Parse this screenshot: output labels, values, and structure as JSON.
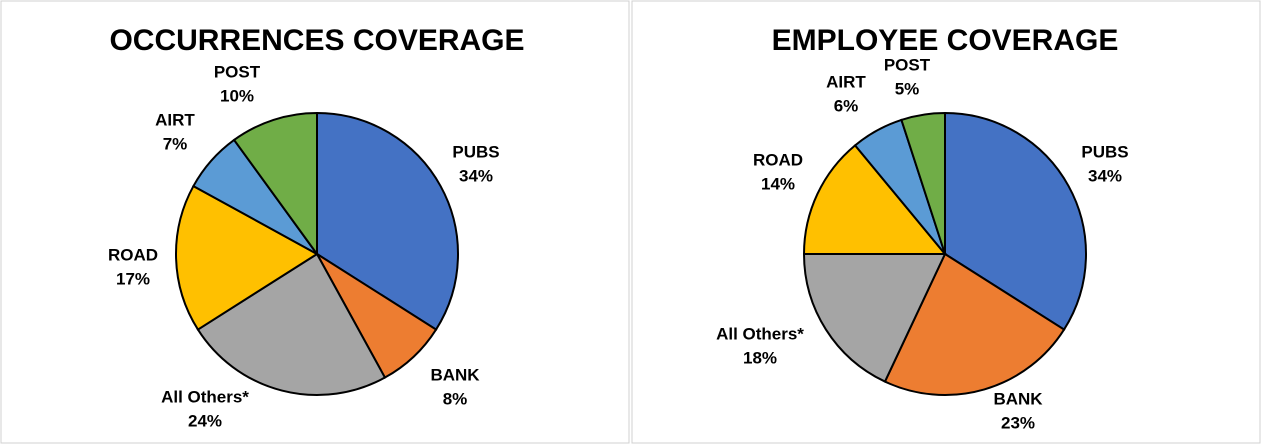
{
  "chart_data": [
    {
      "type": "pie",
      "title": "OCCURRENCES COVERAGE",
      "categories": [
        "PUBS",
        "BANK",
        "All Others*",
        "ROAD",
        "AIRT",
        "POST"
      ],
      "values": [
        34,
        8,
        24,
        17,
        7,
        10
      ],
      "value_labels": [
        "34%",
        "8%",
        "24%",
        "17%",
        "7%",
        "10%"
      ],
      "colors": [
        "#4472c4",
        "#ed7d31",
        "#a5a5a5",
        "#ffc000",
        "#5b9bd5",
        "#70ad47"
      ]
    },
    {
      "type": "pie",
      "title": "EMPLOYEE COVERAGE",
      "categories": [
        "PUBS",
        "BANK",
        "All Others*",
        "ROAD",
        "AIRT",
        "POST"
      ],
      "values": [
        34,
        23,
        18,
        14,
        6,
        5
      ],
      "value_labels": [
        "34%",
        "23%",
        "18%",
        "14%",
        "6%",
        "5%"
      ],
      "colors": [
        "#4472c4",
        "#ed7d31",
        "#a5a5a5",
        "#ffc000",
        "#5b9bd5",
        "#70ad47"
      ]
    }
  ]
}
